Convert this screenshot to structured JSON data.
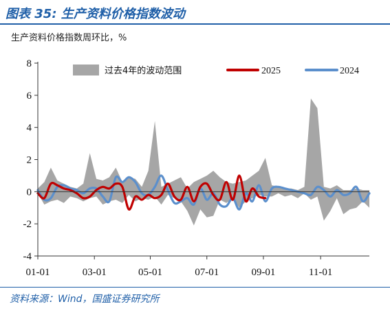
{
  "figure_title": "图表 35: 生产资料价格指数波动",
  "source": "资料来源：Wind，国盛证券研究所",
  "chart_data": {
    "type": "line",
    "title": "",
    "subtitle": "生产资料价格指数周环比，%",
    "xlabel": "",
    "ylabel": "",
    "ylim": [
      -4,
      8
    ],
    "yticks": [
      "8",
      "6",
      "4",
      "2",
      "0",
      "-2",
      "-4"
    ],
    "ytick_values": [
      8,
      6,
      4,
      2,
      0,
      -2,
      -4
    ],
    "xticks": [
      "01-01",
      "03-01",
      "05-01",
      "07-01",
      "09-01",
      "11-01"
    ],
    "xtick_weeks": [
      0,
      8.7,
      17.3,
      26,
      34.7,
      43.5
    ],
    "x_unit": "week of year",
    "legend_position": "top",
    "grid": false,
    "colors": {
      "band": "#a6a6a6",
      "y2025": "#c00000",
      "y2024": "#5b8fcc"
    },
    "band": {
      "name": "过去4年的波动范围",
      "x": [
        0,
        1,
        2,
        3,
        4,
        5,
        6,
        7,
        8,
        9,
        10,
        11,
        12,
        13,
        14,
        15,
        16,
        17,
        18,
        19,
        20,
        21,
        22,
        23,
        24,
        25,
        26,
        27,
        28,
        29,
        30,
        31,
        32,
        33,
        34,
        35,
        36,
        37,
        38,
        39,
        40,
        41,
        42,
        43,
        44,
        45,
        46,
        47,
        48,
        49,
        50,
        51
      ],
      "upper": [
        0.2,
        0.6,
        1.5,
        0.7,
        0.5,
        0.3,
        0.2,
        0.5,
        2.4,
        0.8,
        0.7,
        0.9,
        1.5,
        0.6,
        0.9,
        0.8,
        0.3,
        1.3,
        4.4,
        0.3,
        0.5,
        0.7,
        0.9,
        0.2,
        0.6,
        0.8,
        1.0,
        1.3,
        0.9,
        0.6,
        0.5,
        0.6,
        0.7,
        1.0,
        1.3,
        2.1,
        0.4,
        0.3,
        0.2,
        0.2,
        0.1,
        0.3,
        5.8,
        5.2,
        0.3,
        0.2,
        0.4,
        0.1,
        0.1,
        0.2,
        0.1,
        0.1
      ],
      "lower": [
        -0.1,
        -0.8,
        -0.6,
        -0.5,
        -0.7,
        -0.3,
        -0.4,
        -0.6,
        -0.4,
        -0.3,
        -0.8,
        -0.6,
        -0.5,
        -0.7,
        -0.2,
        -0.6,
        -0.4,
        -0.5,
        -0.3,
        -0.8,
        -0.2,
        -0.4,
        -0.6,
        -1.2,
        -2.1,
        -1.1,
        -1.6,
        -1.5,
        -0.5,
        -0.7,
        -0.4,
        -1.0,
        -0.6,
        -0.4,
        -0.2,
        -0.3,
        -0.3,
        -0.1,
        -0.3,
        -0.2,
        -0.4,
        -0.1,
        -0.5,
        -0.3,
        -1.8,
        -1.2,
        -0.4,
        -1.4,
        -1.1,
        -1.0,
        -0.6,
        -1.0
      ]
    },
    "series": [
      {
        "name": "2025",
        "x": [
          0,
          1,
          2,
          3,
          4,
          5,
          6,
          7,
          8,
          9,
          10,
          11,
          12,
          13,
          14,
          15,
          16,
          17,
          18,
          19,
          20,
          21,
          22,
          23,
          24,
          25,
          26,
          27,
          28,
          29,
          30,
          31,
          32,
          33,
          34,
          35
        ],
        "values": [
          -0.1,
          -0.4,
          0.5,
          0.4,
          0.2,
          0.1,
          -0.1,
          -0.4,
          -0.3,
          0.1,
          0.3,
          0.2,
          0.5,
          0.3,
          -1.1,
          -0.3,
          -0.5,
          -0.2,
          -0.4,
          -0.2,
          0.5,
          -0.3,
          -0.5,
          0.3,
          -0.6,
          0.3,
          0.5,
          -0.2,
          -0.5,
          0.6,
          -0.5,
          1.0,
          -0.6,
          0.2,
          -0.3,
          -0.4
        ]
      },
      {
        "name": "2024",
        "x": [
          0,
          1,
          2,
          3,
          4,
          5,
          6,
          7,
          8,
          9,
          10,
          11,
          12,
          13,
          14,
          15,
          16,
          17,
          18,
          19,
          20,
          21,
          22,
          23,
          24,
          25,
          26,
          27,
          28,
          29,
          30,
          31,
          32,
          33,
          34,
          35,
          36,
          37,
          38,
          39,
          40,
          41,
          42,
          43,
          44,
          45,
          46,
          47,
          48,
          49,
          50,
          51
        ],
        "values": [
          0.1,
          -0.5,
          -0.4,
          0.3,
          0.4,
          0.2,
          0.1,
          -0.1,
          0.2,
          0.2,
          -0.3,
          -0.6,
          0.9,
          0.6,
          0.9,
          0.6,
          -0.1,
          -0.2,
          0.3,
          1.0,
          0.1,
          -0.7,
          -0.6,
          -0.4,
          -0.8,
          0.2,
          -0.5,
          -0.1,
          -0.8,
          -0.9,
          -0.4,
          -1.1,
          -0.1,
          -0.6,
          0.4,
          -0.6,
          0.2,
          0.3,
          0.2,
          0.1,
          0.0,
          -0.1,
          -0.2,
          0.3,
          0.1,
          -0.3,
          0.1,
          -0.2,
          -0.1,
          0.3,
          -0.6,
          -0.1
        ]
      }
    ]
  }
}
